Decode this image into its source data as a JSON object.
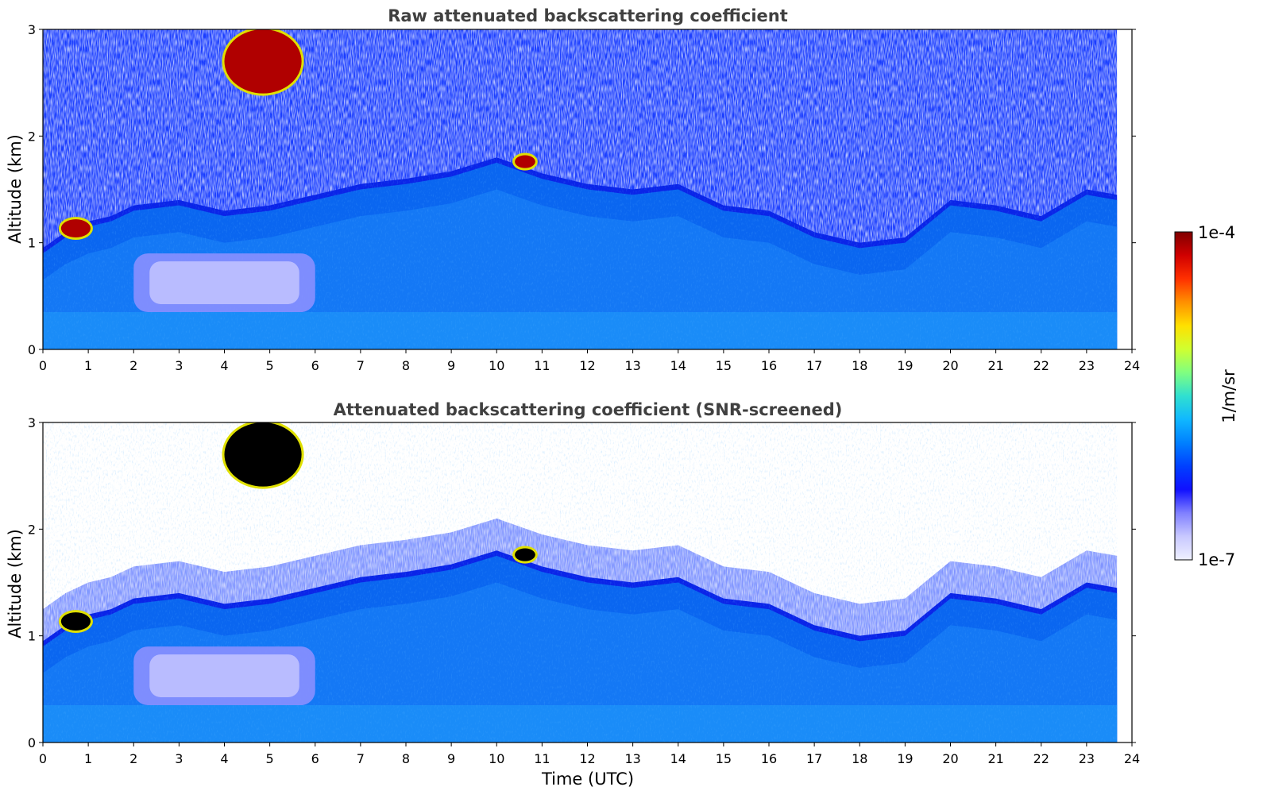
{
  "colors": {
    "background": "#ffffff",
    "title": "#404040",
    "colormap": [
      "#eef0ff",
      "#c8c8ff",
      "#8080ff",
      "#1010ff",
      "#0040ff",
      "#0080ff",
      "#10b8ff",
      "#30e0d0",
      "#80ff80",
      "#d0ff30",
      "#ffe000",
      "#ff9000",
      "#ff3000",
      "#d00000",
      "#800000"
    ]
  },
  "chart_data": [
    {
      "type": "heatmap",
      "title": "Raw attenuated backscattering coefficient",
      "xlabel": "",
      "ylabel": "Altitude (km)",
      "xlim": [
        0,
        24
      ],
      "ylim": [
        0,
        3
      ],
      "x_ticks": [
        "0",
        "1",
        "2",
        "3",
        "4",
        "5",
        "6",
        "7",
        "8",
        "9",
        "10",
        "11",
        "12",
        "13",
        "14",
        "15",
        "16",
        "17",
        "18",
        "19",
        "20",
        "21",
        "22",
        "23",
        "24"
      ],
      "y_ticks": [
        "0",
        "1",
        "2",
        "3"
      ],
      "data_end_time": 23.67,
      "screened": false,
      "boundary_layer_top_km": [
        [
          0,
          0.9
        ],
        [
          0.5,
          1.05
        ],
        [
          1,
          1.15
        ],
        [
          1.5,
          1.2
        ],
        [
          2,
          1.3
        ],
        [
          3,
          1.35
        ],
        [
          4,
          1.25
        ],
        [
          5,
          1.3
        ],
        [
          6,
          1.4
        ],
        [
          7,
          1.5
        ],
        [
          8,
          1.55
        ],
        [
          9,
          1.62
        ],
        [
          10,
          1.75
        ],
        [
          11,
          1.6
        ],
        [
          12,
          1.5
        ],
        [
          13,
          1.45
        ],
        [
          14,
          1.5
        ],
        [
          15,
          1.3
        ],
        [
          16,
          1.25
        ],
        [
          17,
          1.05
        ],
        [
          18,
          0.95
        ],
        [
          19,
          1.0
        ],
        [
          20,
          1.35
        ],
        [
          21,
          1.3
        ],
        [
          22,
          1.2
        ],
        [
          23,
          1.45
        ],
        [
          23.67,
          1.4
        ]
      ],
      "features": [
        {
          "label": "cloud",
          "x_range": [
            0.4,
            1.05
          ],
          "alt_km": [
            1.05,
            1.22
          ],
          "value": "1e-4"
        },
        {
          "label": "cloud",
          "x_range": [
            10.4,
            10.85
          ],
          "alt_km": [
            1.7,
            1.82
          ],
          "value": "1e-4"
        },
        {
          "label": "cloud",
          "x_range": [
            4.0,
            5.7
          ],
          "alt_km": [
            2.4,
            3.0
          ],
          "value": "1e-4"
        },
        {
          "label": "clear-air layer",
          "x_range": [
            2.0,
            6.0
          ],
          "alt_km": [
            0.35,
            0.9
          ],
          "value": "1e-7"
        }
      ]
    },
    {
      "type": "heatmap",
      "title": "Attenuated backscattering coefficient (SNR-screened)",
      "xlabel": "Time (UTC)",
      "ylabel": "Altitude (km)",
      "xlim": [
        0,
        24
      ],
      "ylim": [
        0,
        3
      ],
      "x_ticks": [
        "0",
        "1",
        "2",
        "3",
        "4",
        "5",
        "6",
        "7",
        "8",
        "9",
        "10",
        "11",
        "12",
        "13",
        "14",
        "15",
        "16",
        "17",
        "18",
        "19",
        "20",
        "21",
        "22",
        "23",
        "24"
      ],
      "y_ticks": [
        "0",
        "1",
        "2",
        "3"
      ],
      "data_end_time": 23.67,
      "screened": true,
      "boundary_layer_top_km": [
        [
          0,
          0.9
        ],
        [
          0.5,
          1.05
        ],
        [
          1,
          1.15
        ],
        [
          1.5,
          1.2
        ],
        [
          2,
          1.3
        ],
        [
          3,
          1.35
        ],
        [
          4,
          1.25
        ],
        [
          5,
          1.3
        ],
        [
          6,
          1.4
        ],
        [
          7,
          1.5
        ],
        [
          8,
          1.55
        ],
        [
          9,
          1.62
        ],
        [
          10,
          1.75
        ],
        [
          11,
          1.6
        ],
        [
          12,
          1.5
        ],
        [
          13,
          1.45
        ],
        [
          14,
          1.5
        ],
        [
          15,
          1.3
        ],
        [
          16,
          1.25
        ],
        [
          17,
          1.05
        ],
        [
          18,
          0.95
        ],
        [
          19,
          1.0
        ],
        [
          20,
          1.35
        ],
        [
          21,
          1.3
        ],
        [
          22,
          1.2
        ],
        [
          23,
          1.45
        ],
        [
          23.67,
          1.4
        ]
      ]
    }
  ],
  "colorbar": {
    "label": "1/m/sr",
    "max_label": "1e-4",
    "min_label": "1e-7",
    "scale": "log",
    "range": [
      1e-07,
      0.0001
    ]
  }
}
